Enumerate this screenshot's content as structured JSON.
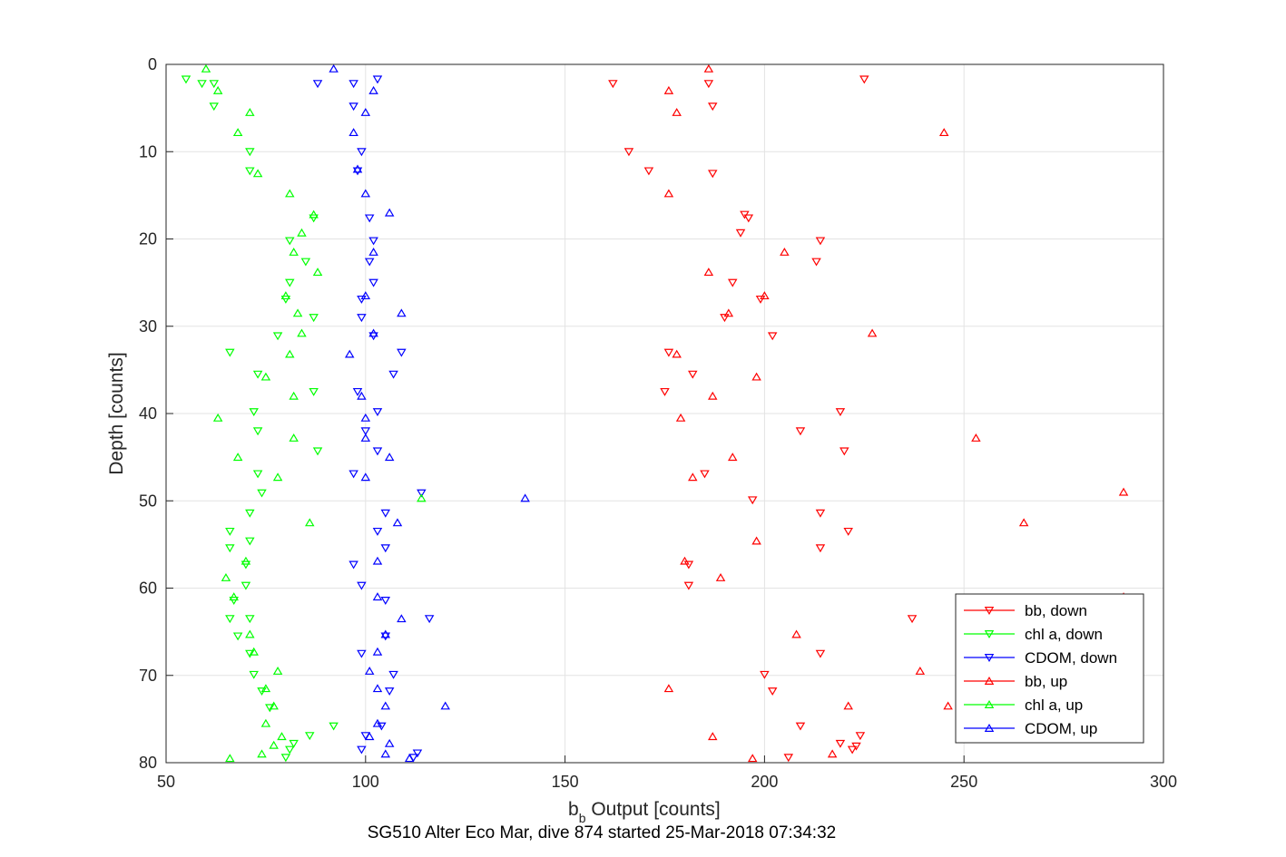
{
  "chart_data": {
    "type": "scatter",
    "xlabel_main": "b",
    "xlabel_sub": "b",
    "xlabel_rest": " Output [counts]",
    "ylabel": "Depth [counts]",
    "footer": "SG510 Alter Eco Mar, dive 874 started 25-Mar-2018 07:34:32",
    "xlim": [
      50,
      300
    ],
    "ylim": [
      0,
      80
    ],
    "y_reversed": true,
    "xticks": [
      "50",
      "100",
      "150",
      "200",
      "250",
      "300"
    ],
    "yticks": [
      "0",
      "10",
      "20",
      "30",
      "40",
      "50",
      "60",
      "70",
      "80"
    ],
    "grid": true,
    "legend_position": "bottom-right",
    "series": [
      {
        "name": "bb, down",
        "color": "#ff0000",
        "marker": "triangle-down",
        "points": [
          [
            225,
            1.7
          ],
          [
            162,
            2.2
          ],
          [
            186,
            2.2
          ],
          [
            187,
            4.8
          ],
          [
            166,
            10
          ],
          [
            171,
            12.2
          ],
          [
            187,
            12.5
          ],
          [
            195,
            17.2
          ],
          [
            196,
            17.6
          ],
          [
            194,
            19.3
          ],
          [
            214,
            20.2
          ],
          [
            213,
            22.6
          ],
          [
            192,
            25
          ],
          [
            199,
            26.9
          ],
          [
            190,
            29
          ],
          [
            202,
            31.1
          ],
          [
            176,
            33
          ],
          [
            182,
            35.5
          ],
          [
            175,
            37.5
          ],
          [
            219,
            39.8
          ],
          [
            209,
            42
          ],
          [
            220,
            44.3
          ],
          [
            185,
            46.9
          ],
          [
            197,
            49.9
          ],
          [
            214,
            51.4
          ],
          [
            221,
            53.5
          ],
          [
            214,
            55.4
          ],
          [
            181,
            57.3
          ],
          [
            181,
            59.7
          ],
          [
            237,
            63.5
          ],
          [
            214,
            67.5
          ],
          [
            200,
            69.9
          ],
          [
            202,
            71.8
          ],
          [
            209,
            75.8
          ],
          [
            224,
            76.9
          ],
          [
            219,
            77.8
          ],
          [
            222,
            78.5
          ],
          [
            223,
            78.1
          ],
          [
            206,
            79.4
          ]
        ]
      },
      {
        "name": "chl a, down",
        "color": "#00ff00",
        "marker": "triangle-down",
        "points": [
          [
            55,
            1.7
          ],
          [
            59,
            2.2
          ],
          [
            62,
            2.2
          ],
          [
            62,
            4.8
          ],
          [
            71,
            10
          ],
          [
            71,
            12.2
          ],
          [
            87,
            17.6
          ],
          [
            81,
            20.2
          ],
          [
            85,
            22.6
          ],
          [
            81,
            25
          ],
          [
            80,
            26.9
          ],
          [
            87,
            29
          ],
          [
            78,
            31.1
          ],
          [
            66,
            33
          ],
          [
            73,
            35.5
          ],
          [
            87,
            37.5
          ],
          [
            72,
            39.8
          ],
          [
            73,
            42
          ],
          [
            88,
            44.3
          ],
          [
            73,
            46.9
          ],
          [
            74,
            49.1
          ],
          [
            71,
            51.4
          ],
          [
            66,
            53.5
          ],
          [
            71,
            54.6
          ],
          [
            66,
            55.4
          ],
          [
            70,
            57.3
          ],
          [
            67,
            61.4
          ],
          [
            70,
            59.7
          ],
          [
            66,
            63.5
          ],
          [
            71,
            63.5
          ],
          [
            68,
            65.5
          ],
          [
            71,
            67.5
          ],
          [
            72,
            69.9
          ],
          [
            74,
            71.8
          ],
          [
            76,
            73.7
          ],
          [
            82,
            77.8
          ],
          [
            81,
            78.5
          ],
          [
            80,
            79.4
          ],
          [
            86,
            76.9
          ],
          [
            92,
            75.8
          ]
        ]
      },
      {
        "name": "CDOM, down",
        "color": "#0000ff",
        "marker": "triangle-down",
        "points": [
          [
            103,
            1.7
          ],
          [
            88,
            2.2
          ],
          [
            97,
            2.2
          ],
          [
            97,
            4.8
          ],
          [
            99,
            10
          ],
          [
            98,
            12.2
          ],
          [
            101,
            17.6
          ],
          [
            102,
            20.2
          ],
          [
            101,
            22.6
          ],
          [
            102,
            25
          ],
          [
            99,
            26.9
          ],
          [
            99,
            29
          ],
          [
            102,
            31.1
          ],
          [
            109,
            33
          ],
          [
            107,
            35.5
          ],
          [
            98,
            37.5
          ],
          [
            103,
            39.8
          ],
          [
            100,
            42
          ],
          [
            103,
            44.3
          ],
          [
            97,
            46.9
          ],
          [
            114,
            49.1
          ],
          [
            105,
            51.4
          ],
          [
            103,
            53.5
          ],
          [
            105,
            55.4
          ],
          [
            97,
            57.3
          ],
          [
            99,
            59.7
          ],
          [
            105,
            61.4
          ],
          [
            116,
            63.5
          ],
          [
            105,
            65.5
          ],
          [
            99,
            67.5
          ],
          [
            107,
            69.9
          ],
          [
            106,
            71.8
          ],
          [
            100,
            76.9
          ],
          [
            99,
            78.5
          ],
          [
            112,
            79.4
          ],
          [
            113,
            78.9
          ],
          [
            104,
            75.8
          ]
        ]
      },
      {
        "name": "bb, up",
        "color": "#ff0000",
        "marker": "triangle-up",
        "points": [
          [
            186,
            0.5
          ],
          [
            176,
            3
          ],
          [
            178,
            5.5
          ],
          [
            245,
            7.8
          ],
          [
            176,
            14.8
          ],
          [
            200,
            26.5
          ],
          [
            191,
            28.5
          ],
          [
            227,
            30.8
          ],
          [
            178,
            33.2
          ],
          [
            198,
            35.8
          ],
          [
            187,
            38
          ],
          [
            179,
            40.5
          ],
          [
            253,
            42.8
          ],
          [
            192,
            45
          ],
          [
            182,
            47.3
          ],
          [
            290,
            49
          ],
          [
            265,
            52.5
          ],
          [
            198,
            54.6
          ],
          [
            180,
            56.9
          ],
          [
            189,
            58.8
          ],
          [
            290,
            61
          ],
          [
            208,
            65.3
          ],
          [
            239,
            69.5
          ],
          [
            176,
            71.5
          ],
          [
            221,
            73.5
          ],
          [
            246,
            73.5
          ],
          [
            187,
            77
          ],
          [
            217,
            79
          ],
          [
            197,
            79.5
          ],
          [
            186,
            23.8
          ],
          [
            205,
            21.5
          ]
        ]
      },
      {
        "name": "chl a, up",
        "color": "#00ff00",
        "marker": "triangle-up",
        "points": [
          [
            60,
            0.5
          ],
          [
            63,
            3
          ],
          [
            71,
            5.5
          ],
          [
            68,
            7.8
          ],
          [
            73,
            12.5
          ],
          [
            81,
            14.8
          ],
          [
            87,
            17.2
          ],
          [
            84,
            19.3
          ],
          [
            82,
            21.5
          ],
          [
            88,
            23.8
          ],
          [
            80,
            26.5
          ],
          [
            83,
            28.5
          ],
          [
            84,
            30.8
          ],
          [
            81,
            33.2
          ],
          [
            75,
            35.8
          ],
          [
            82,
            38
          ],
          [
            63,
            40.5
          ],
          [
            82,
            42.8
          ],
          [
            68,
            45
          ],
          [
            78,
            47.3
          ],
          [
            114,
            49.7
          ],
          [
            86,
            52.5
          ],
          [
            70,
            56.9
          ],
          [
            65,
            58.8
          ],
          [
            67,
            61
          ],
          [
            71,
            65.3
          ],
          [
            72,
            67.3
          ],
          [
            78,
            69.5
          ],
          [
            75,
            71.5
          ],
          [
            77,
            73.5
          ],
          [
            75,
            75.5
          ],
          [
            79,
            77
          ],
          [
            77,
            78
          ],
          [
            74,
            79
          ],
          [
            66,
            79.5
          ]
        ]
      },
      {
        "name": "CDOM, up",
        "color": "#0000ff",
        "marker": "triangle-up",
        "points": [
          [
            92,
            0.5
          ],
          [
            102,
            3
          ],
          [
            100,
            5.5
          ],
          [
            97,
            7.8
          ],
          [
            98,
            12
          ],
          [
            100,
            14.8
          ],
          [
            106,
            17
          ],
          [
            102,
            21.5
          ],
          [
            100,
            26.5
          ],
          [
            109,
            28.5
          ],
          [
            102,
            30.8
          ],
          [
            96,
            33.2
          ],
          [
            99,
            38
          ],
          [
            100,
            40.5
          ],
          [
            100,
            42.8
          ],
          [
            106,
            45
          ],
          [
            100,
            47.3
          ],
          [
            140,
            49.7
          ],
          [
            108,
            52.5
          ],
          [
            103,
            56.9
          ],
          [
            103,
            61
          ],
          [
            109,
            63.5
          ],
          [
            105,
            65.3
          ],
          [
            103,
            67.3
          ],
          [
            101,
            69.5
          ],
          [
            103,
            71.5
          ],
          [
            105,
            73.5
          ],
          [
            120,
            73.5
          ],
          [
            103,
            75.5
          ],
          [
            101,
            77
          ],
          [
            106,
            77.8
          ],
          [
            105,
            79
          ],
          [
            111,
            79.5
          ]
        ]
      }
    ]
  }
}
